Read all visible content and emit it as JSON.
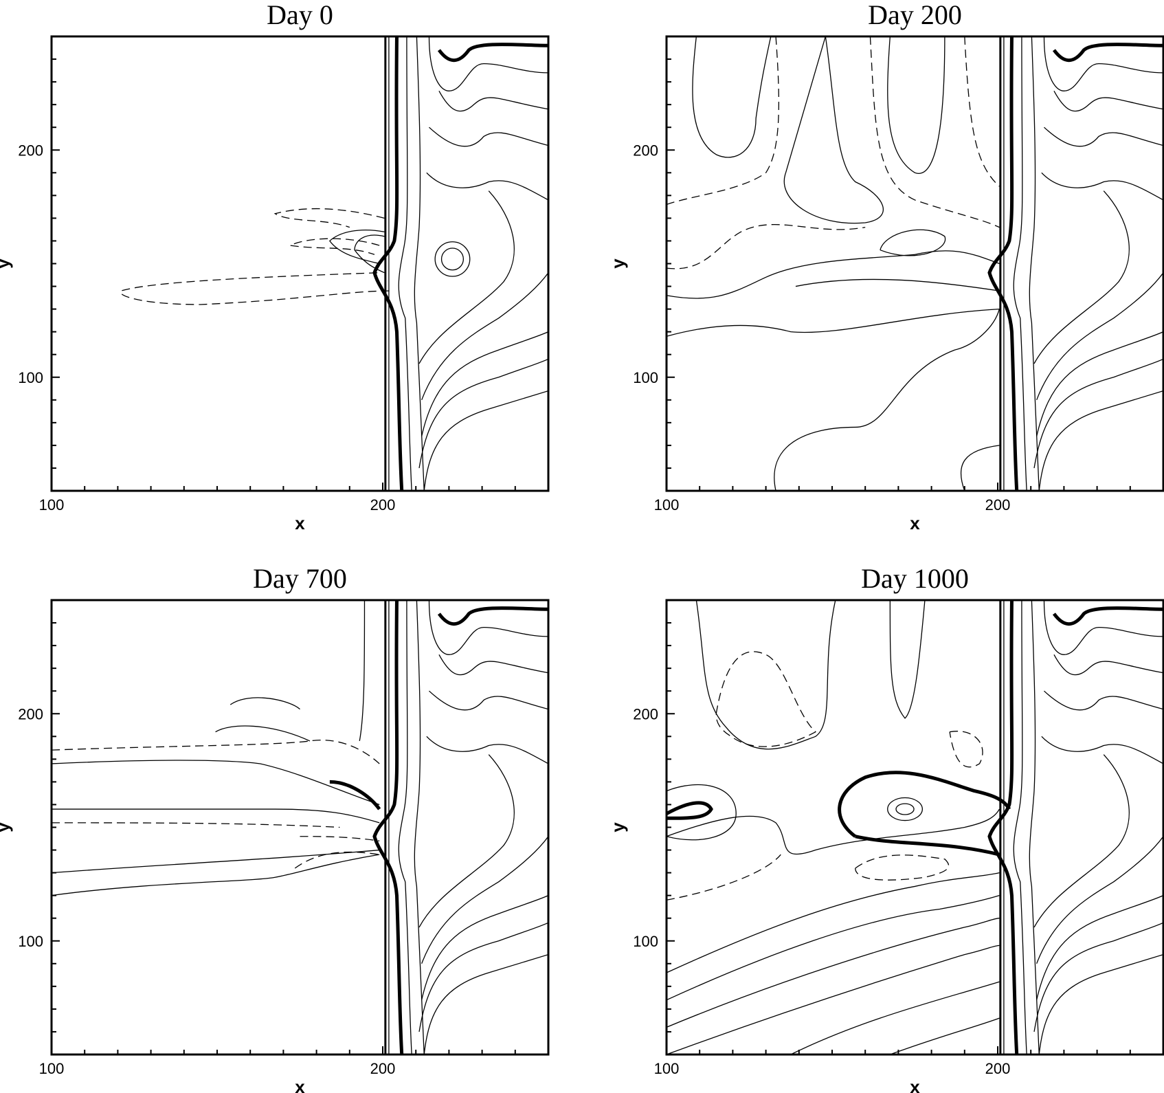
{
  "chart_data": [
    {
      "type": "contour",
      "title": "Day 0",
      "xlabel": "x",
      "ylabel": "y",
      "xlim": [
        100,
        250
      ],
      "ylim": [
        50,
        250
      ],
      "x_ticks": [
        100,
        200
      ],
      "y_ticks": [
        100,
        200
      ],
      "grid": false
    },
    {
      "type": "contour",
      "title": "Day 200",
      "xlabel": "x",
      "ylabel": "y",
      "xlim": [
        100,
        250
      ],
      "ylim": [
        50,
        250
      ],
      "x_ticks": [
        100,
        200
      ],
      "y_ticks": [
        100,
        200
      ],
      "grid": false
    },
    {
      "type": "contour",
      "title": "Day 700",
      "xlabel": "x",
      "ylabel": "y",
      "xlim": [
        100,
        250
      ],
      "ylim": [
        50,
        250
      ],
      "x_ticks": [
        100,
        200
      ],
      "y_ticks": [
        100,
        200
      ],
      "grid": false
    },
    {
      "type": "contour",
      "title": "Day 1000",
      "xlabel": "x",
      "ylabel": "y",
      "xlim": [
        100,
        250
      ],
      "ylim": [
        50,
        250
      ],
      "x_ticks": [
        100,
        200
      ],
      "y_ticks": [
        100,
        200
      ],
      "grid": false
    }
  ]
}
